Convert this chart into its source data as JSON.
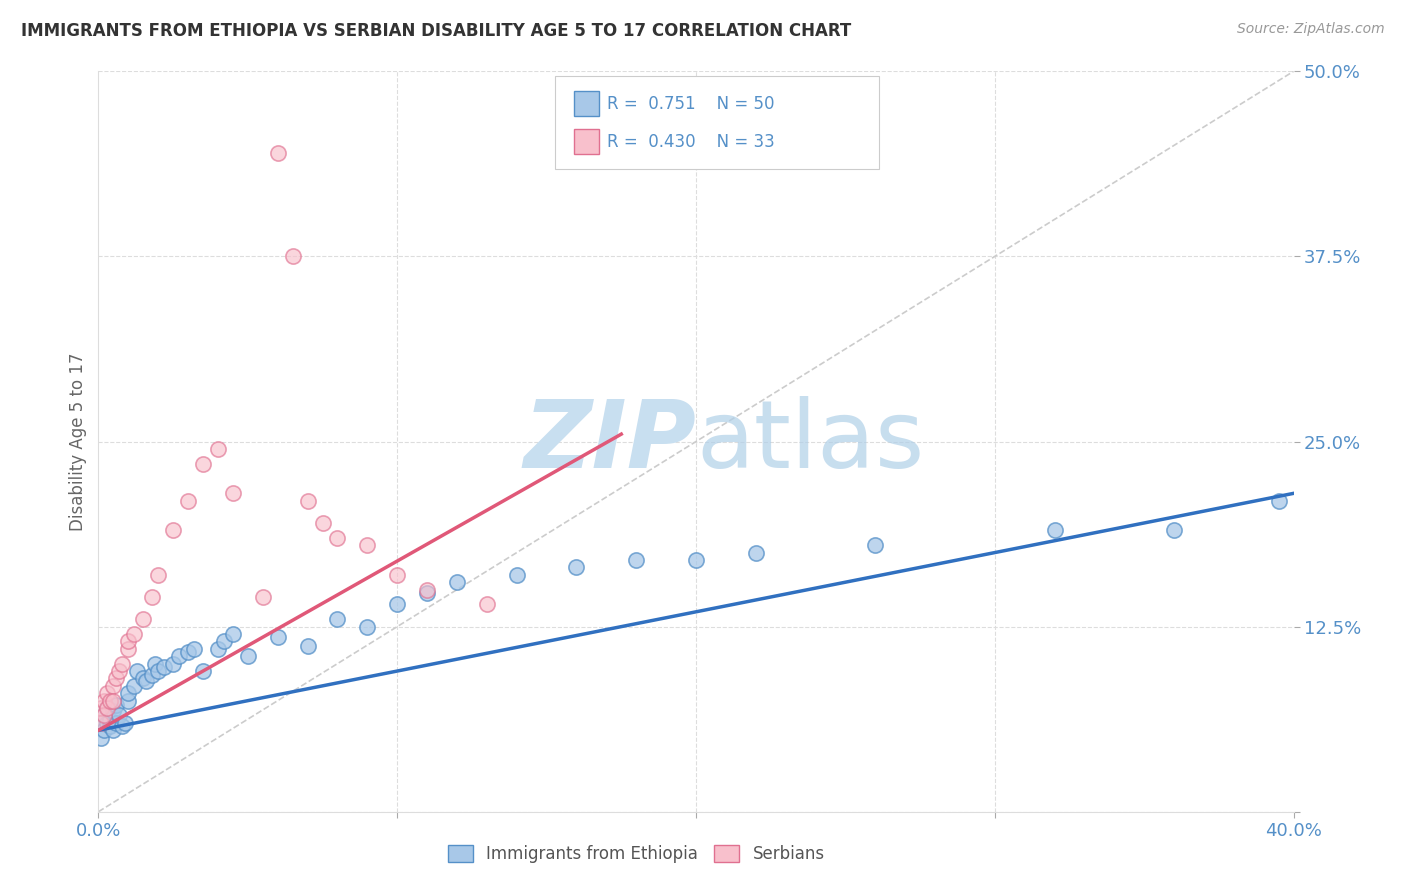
{
  "title": "IMMIGRANTS FROM ETHIOPIA VS SERBIAN DISABILITY AGE 5 TO 17 CORRELATION CHART",
  "source": "Source: ZipAtlas.com",
  "ylabel": "Disability Age 5 to 17",
  "xlim": [
    0.0,
    0.4
  ],
  "ylim": [
    0.0,
    0.5
  ],
  "yticks": [
    0.0,
    0.125,
    0.25,
    0.375,
    0.5
  ],
  "yticklabels": [
    "",
    "12.5%",
    "25.0%",
    "37.5%",
    "50.0%"
  ],
  "xticks": [
    0.0,
    0.1,
    0.2,
    0.3,
    0.4
  ],
  "xticklabels": [
    "0.0%",
    "",
    "",
    "",
    "40.0%"
  ],
  "grid_color": "#dddddd",
  "background_color": "#ffffff",
  "blue_scatter_color": "#a8c8e8",
  "blue_edge_color": "#5590c8",
  "pink_scatter_color": "#f8c0cc",
  "pink_edge_color": "#e07090",
  "blue_line_color": "#3070c0",
  "pink_line_color": "#e05878",
  "diag_line_color": "#cccccc",
  "tick_label_color": "#5590c8",
  "axis_label_color": "#666666",
  "title_color": "#333333",
  "source_color": "#999999",
  "watermark_color": "#c8dff0",
  "legend_r1": "R =  0.751",
  "legend_n1": "N = 50",
  "legend_r2": "R =  0.430",
  "legend_n2": "N = 33",
  "eth_trend_x": [
    0.0,
    0.4
  ],
  "eth_trend_y": [
    0.055,
    0.215
  ],
  "ser_trend_x": [
    0.0,
    0.175
  ],
  "ser_trend_y": [
    0.055,
    0.255
  ],
  "eth_x": [
    0.001,
    0.001,
    0.002,
    0.002,
    0.003,
    0.003,
    0.004,
    0.004,
    0.005,
    0.005,
    0.006,
    0.006,
    0.007,
    0.008,
    0.009,
    0.01,
    0.01,
    0.012,
    0.013,
    0.015,
    0.016,
    0.018,
    0.019,
    0.02,
    0.022,
    0.025,
    0.027,
    0.03,
    0.032,
    0.035,
    0.04,
    0.042,
    0.045,
    0.05,
    0.06,
    0.07,
    0.08,
    0.09,
    0.1,
    0.11,
    0.12,
    0.14,
    0.16,
    0.18,
    0.2,
    0.22,
    0.26,
    0.32,
    0.36,
    0.395
  ],
  "eth_y": [
    0.06,
    0.05,
    0.055,
    0.065,
    0.06,
    0.07,
    0.058,
    0.062,
    0.055,
    0.068,
    0.06,
    0.072,
    0.065,
    0.058,
    0.06,
    0.075,
    0.08,
    0.085,
    0.095,
    0.09,
    0.088,
    0.092,
    0.1,
    0.095,
    0.098,
    0.1,
    0.105,
    0.108,
    0.11,
    0.095,
    0.11,
    0.115,
    0.12,
    0.105,
    0.118,
    0.112,
    0.13,
    0.125,
    0.14,
    0.148,
    0.155,
    0.16,
    0.165,
    0.17,
    0.17,
    0.175,
    0.18,
    0.19,
    0.19,
    0.21
  ],
  "ser_x": [
    0.001,
    0.001,
    0.002,
    0.002,
    0.003,
    0.003,
    0.004,
    0.005,
    0.005,
    0.006,
    0.007,
    0.008,
    0.01,
    0.01,
    0.012,
    0.015,
    0.018,
    0.02,
    0.025,
    0.03,
    0.035,
    0.04,
    0.045,
    0.055,
    0.06,
    0.065,
    0.07,
    0.075,
    0.08,
    0.09,
    0.1,
    0.11,
    0.13
  ],
  "ser_y": [
    0.07,
    0.06,
    0.075,
    0.065,
    0.07,
    0.08,
    0.075,
    0.085,
    0.075,
    0.09,
    0.095,
    0.1,
    0.11,
    0.115,
    0.12,
    0.13,
    0.145,
    0.16,
    0.19,
    0.21,
    0.235,
    0.245,
    0.215,
    0.145,
    0.445,
    0.375,
    0.21,
    0.195,
    0.185,
    0.18,
    0.16,
    0.15,
    0.14
  ]
}
